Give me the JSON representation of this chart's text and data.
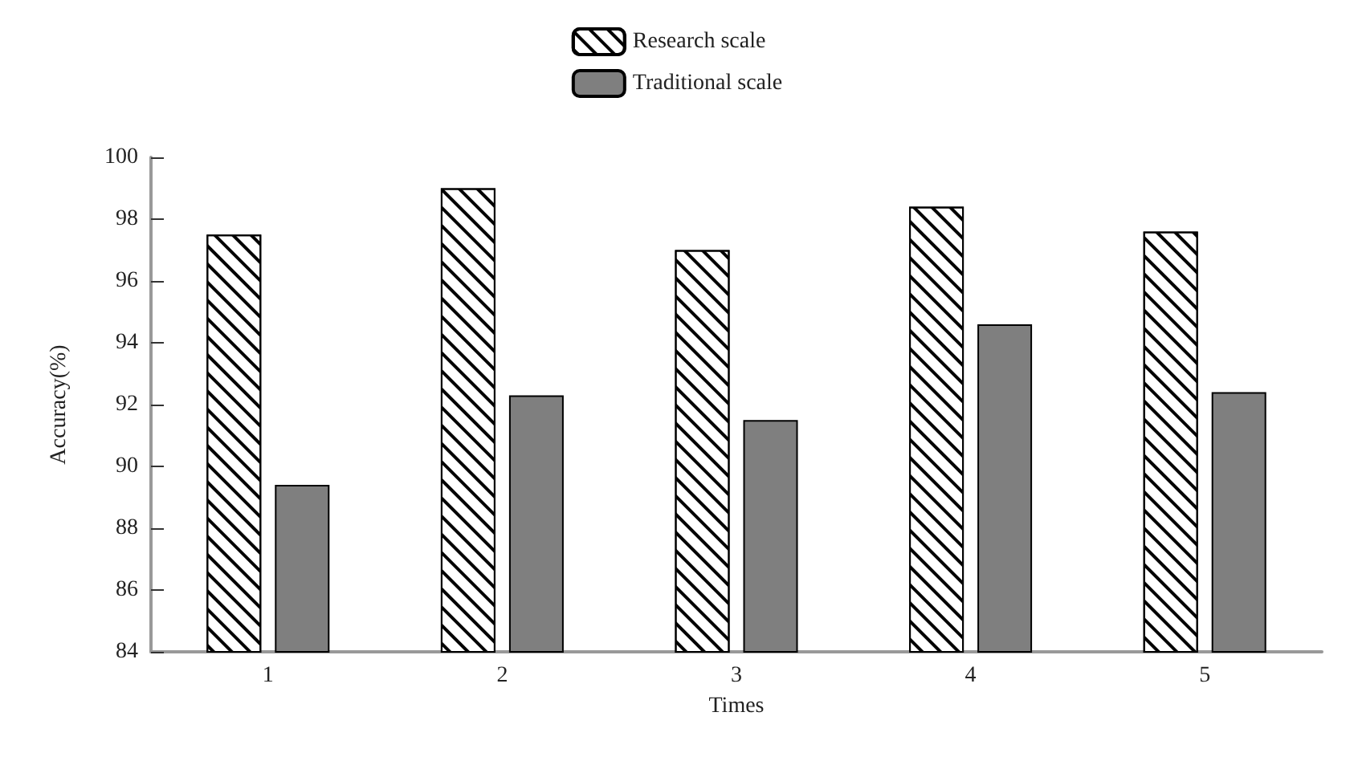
{
  "chart_data": {
    "type": "bar",
    "xlabel": "Times",
    "ylabel": "Accuracy(%)",
    "categories": [
      "1",
      "2",
      "3",
      "4",
      "5"
    ],
    "series": [
      {
        "name": "Research scale",
        "color": "#ffffff",
        "values": [
          97.5,
          99.0,
          97.0,
          98.4,
          97.6
        ]
      },
      {
        "name": "Traditional scale",
        "color": "#7f7f7f",
        "values": [
          89.4,
          92.3,
          91.5,
          94.6,
          92.4
        ]
      }
    ],
    "ylim": [
      84,
      100
    ],
    "yticks": [
      84,
      86,
      88,
      90,
      92,
      94,
      96,
      98,
      100
    ],
    "grid": false,
    "legend": "top"
  }
}
